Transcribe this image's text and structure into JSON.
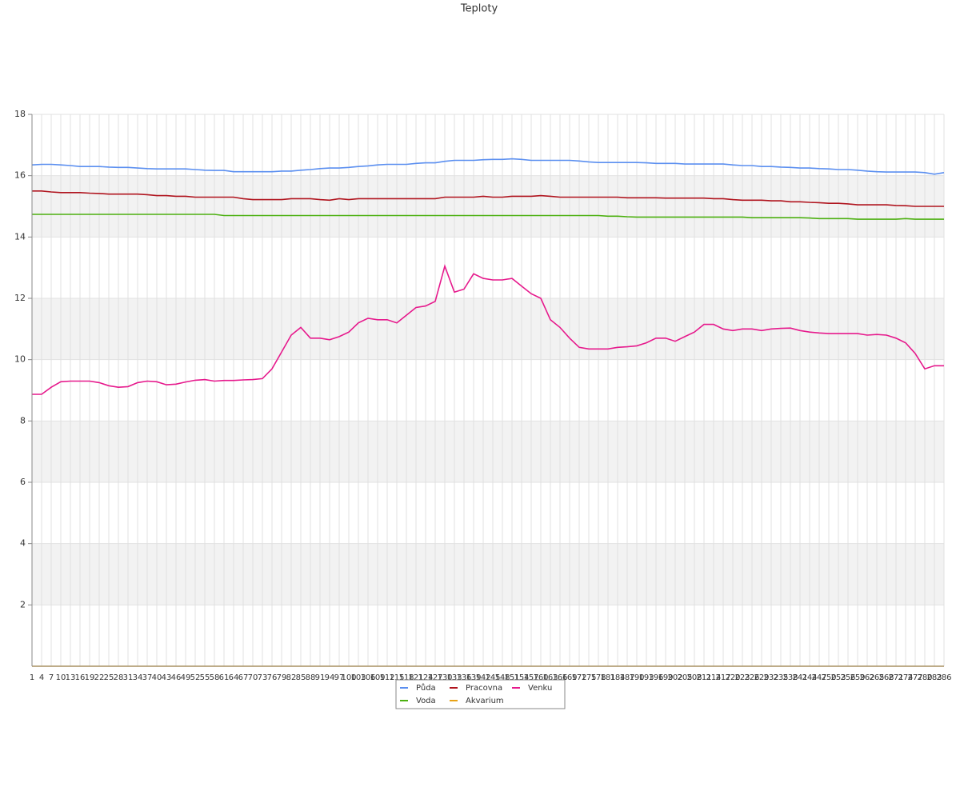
{
  "chart_data": {
    "type": "line",
    "title": "Teploty",
    "categories": [
      1,
      4,
      7,
      10,
      13,
      16,
      19,
      22,
      25,
      28,
      31,
      34,
      37,
      40,
      43,
      46,
      49,
      52,
      55,
      58,
      61,
      64,
      67,
      70,
      73,
      76,
      79,
      82,
      85,
      88,
      91,
      94,
      97,
      100,
      103,
      106,
      109,
      112,
      115,
      118,
      121,
      124,
      127,
      130,
      133,
      136,
      139,
      142,
      145,
      148,
      151,
      154,
      157,
      160,
      163,
      166,
      169,
      172,
      175,
      178,
      181,
      184,
      187,
      190,
      193,
      196,
      199,
      202,
      205,
      208,
      211,
      214,
      217,
      220,
      223,
      226,
      229,
      232,
      235,
      238,
      241,
      244,
      247,
      250,
      253,
      256,
      259,
      262,
      265,
      268,
      271,
      274,
      277,
      280,
      283,
      286
    ],
    "ylim": [
      0,
      18
    ],
    "yticks": [
      2,
      4,
      6,
      8,
      10,
      12,
      14,
      16,
      18
    ],
    "grid": true,
    "legend": "bottom",
    "series": [
      {
        "name": "Půda",
        "color": "#5b8ff0",
        "values": [
          16.35,
          16.37,
          16.37,
          16.35,
          16.33,
          16.3,
          16.3,
          16.3,
          16.28,
          16.27,
          16.27,
          16.25,
          16.23,
          16.22,
          16.22,
          16.22,
          16.22,
          16.2,
          16.18,
          16.17,
          16.17,
          16.13,
          16.13,
          16.13,
          16.13,
          16.13,
          16.15,
          16.15,
          16.18,
          16.2,
          16.23,
          16.25,
          16.25,
          16.27,
          16.3,
          16.32,
          16.35,
          16.37,
          16.37,
          16.37,
          16.4,
          16.42,
          16.42,
          16.47,
          16.5,
          16.5,
          16.5,
          16.52,
          16.53,
          16.53,
          16.55,
          16.53,
          16.5,
          16.5,
          16.5,
          16.5,
          16.5,
          16.48,
          16.45,
          16.43,
          16.43,
          16.43,
          16.43,
          16.43,
          16.42,
          16.4,
          16.4,
          16.4,
          16.38,
          16.38,
          16.38,
          16.38,
          16.38,
          16.35,
          16.33,
          16.33,
          16.3,
          16.3,
          16.28,
          16.27,
          16.25,
          16.25,
          16.23,
          16.22,
          16.2,
          16.2,
          16.18,
          16.15,
          16.13,
          16.12,
          16.12,
          16.12,
          16.12,
          16.1,
          16.05,
          16.1
        ]
      },
      {
        "name": "Pracovna",
        "color": "#b0141e",
        "values": [
          15.5,
          15.5,
          15.47,
          15.45,
          15.45,
          15.45,
          15.43,
          15.42,
          15.4,
          15.4,
          15.4,
          15.4,
          15.38,
          15.35,
          15.35,
          15.33,
          15.33,
          15.3,
          15.3,
          15.3,
          15.3,
          15.3,
          15.25,
          15.22,
          15.22,
          15.22,
          15.22,
          15.25,
          15.25,
          15.25,
          15.22,
          15.2,
          15.25,
          15.22,
          15.25,
          15.25,
          15.25,
          15.25,
          15.25,
          15.25,
          15.25,
          15.25,
          15.25,
          15.3,
          15.3,
          15.3,
          15.3,
          15.33,
          15.3,
          15.3,
          15.33,
          15.33,
          15.33,
          15.35,
          15.33,
          15.3,
          15.3,
          15.3,
          15.3,
          15.3,
          15.3,
          15.3,
          15.28,
          15.28,
          15.28,
          15.28,
          15.27,
          15.27,
          15.27,
          15.27,
          15.27,
          15.25,
          15.25,
          15.22,
          15.2,
          15.2,
          15.2,
          15.18,
          15.18,
          15.15,
          15.15,
          15.13,
          15.12,
          15.1,
          15.1,
          15.08,
          15.05,
          15.05,
          15.05,
          15.05,
          15.03,
          15.02,
          15.0,
          15.0,
          15.0,
          15.0
        ]
      },
      {
        "name": "Venku",
        "color": "#e6198c",
        "values": [
          8.87,
          8.87,
          9.1,
          9.28,
          9.3,
          9.3,
          9.3,
          9.25,
          9.15,
          9.1,
          9.12,
          9.25,
          9.3,
          9.28,
          9.18,
          9.2,
          9.27,
          9.33,
          9.35,
          9.3,
          9.32,
          9.32,
          9.34,
          9.35,
          9.38,
          9.7,
          10.25,
          10.8,
          11.05,
          10.7,
          10.7,
          10.65,
          10.75,
          10.9,
          11.2,
          11.35,
          11.3,
          11.3,
          11.2,
          11.45,
          11.7,
          11.75,
          11.9,
          13.05,
          12.2,
          12.3,
          12.8,
          12.65,
          12.6,
          12.6,
          12.65,
          12.4,
          12.15,
          12.0,
          11.3,
          11.05,
          10.7,
          10.4,
          10.35,
          10.35,
          10.35,
          10.4,
          10.42,
          10.45,
          10.55,
          10.7,
          10.7,
          10.6,
          10.75,
          10.9,
          11.15,
          11.15,
          11.0,
          10.95,
          11.0,
          11.0,
          10.95,
          11.0,
          11.02,
          11.03,
          10.95,
          10.9,
          10.87,
          10.85,
          10.85,
          10.85,
          10.85,
          10.8,
          10.82,
          10.8,
          10.7,
          10.55,
          10.2,
          9.7,
          9.8,
          9.8
        ]
      },
      {
        "name": "Voda",
        "color": "#4cb010",
        "values": [
          14.74,
          14.74,
          14.74,
          14.74,
          14.74,
          14.74,
          14.74,
          14.74,
          14.74,
          14.74,
          14.74,
          14.74,
          14.74,
          14.74,
          14.74,
          14.74,
          14.74,
          14.74,
          14.74,
          14.74,
          14.7,
          14.7,
          14.7,
          14.7,
          14.7,
          14.7,
          14.7,
          14.7,
          14.7,
          14.7,
          14.7,
          14.7,
          14.7,
          14.7,
          14.7,
          14.7,
          14.7,
          14.7,
          14.7,
          14.7,
          14.7,
          14.7,
          14.7,
          14.7,
          14.7,
          14.7,
          14.7,
          14.7,
          14.7,
          14.7,
          14.7,
          14.7,
          14.7,
          14.7,
          14.7,
          14.7,
          14.7,
          14.7,
          14.7,
          14.7,
          14.68,
          14.68,
          14.66,
          14.65,
          14.65,
          14.65,
          14.65,
          14.65,
          14.65,
          14.65,
          14.65,
          14.65,
          14.65,
          14.65,
          14.65,
          14.63,
          14.63,
          14.63,
          14.63,
          14.63,
          14.63,
          14.62,
          14.6,
          14.6,
          14.6,
          14.6,
          14.58,
          14.58,
          14.58,
          14.58,
          14.58,
          14.6,
          14.58,
          14.58,
          14.58,
          14.58
        ]
      },
      {
        "name": "Akvarium",
        "color": "#e8a317",
        "values": [
          0,
          0,
          0,
          0,
          0,
          0,
          0,
          0,
          0,
          0,
          0,
          0,
          0,
          0,
          0,
          0,
          0,
          0,
          0,
          0,
          0,
          0,
          0,
          0,
          0,
          0,
          0,
          0,
          0,
          0,
          0,
          0,
          0,
          0,
          0,
          0,
          0,
          0,
          0,
          0,
          0,
          0,
          0,
          0,
          0,
          0,
          0,
          0,
          0,
          0,
          0,
          0,
          0,
          0,
          0,
          0,
          0,
          0,
          0,
          0,
          0,
          0,
          0,
          0,
          0,
          0,
          0,
          0,
          0,
          0,
          0,
          0,
          0,
          0,
          0,
          0,
          0,
          0,
          0,
          0,
          0,
          0,
          0,
          0,
          0,
          0,
          0,
          0,
          0,
          0,
          0,
          0,
          0,
          0,
          0,
          0
        ]
      }
    ]
  }
}
